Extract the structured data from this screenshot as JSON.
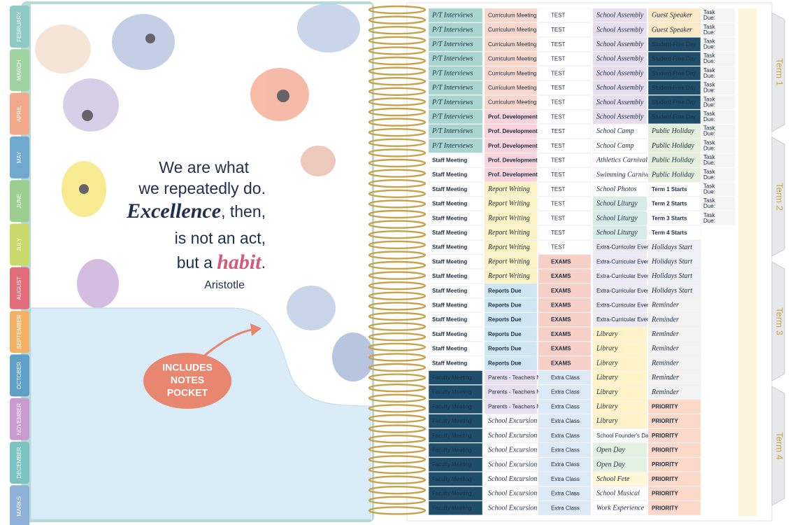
{
  "planner": {
    "month_tabs": [
      {
        "label": "FEBRUARY",
        "color": "#8fc9c4"
      },
      {
        "label": "MARCH",
        "color": "#9fd3a2"
      },
      {
        "label": "APRIL",
        "color": "#f2a88a"
      },
      {
        "label": "MAY",
        "color": "#6fa9cf"
      },
      {
        "label": "JUNE",
        "color": "#9ccf8f"
      },
      {
        "label": "JULY",
        "color": "#c9d96a"
      },
      {
        "label": "AUGUST",
        "color": "#e26b7a"
      },
      {
        "label": "SEPTEMBER",
        "color": "#f2b266"
      },
      {
        "label": "OCTOBER",
        "color": "#5fa0c8"
      },
      {
        "label": "NOVEMBER",
        "color": "#c89ad0"
      },
      {
        "label": "DECEMBER",
        "color": "#7bc3c0"
      },
      {
        "label": "MARKS",
        "color": "#8fb0d8"
      }
    ],
    "quote": {
      "line1": "We are what",
      "line2": "we repeatedly do.",
      "line3_emph": "Excellence",
      "line3_rest": ", then,",
      "line4": "is not an act,",
      "line5_start": "but a ",
      "line5_emph": "habit",
      "line5_end": ".",
      "author": "Aristotle"
    },
    "badge": [
      "INCLUDES",
      "NOTES",
      "POCKET"
    ],
    "term_tabs": [
      "Term 1",
      "Term 2",
      "Term 3",
      "Term 4"
    ],
    "columns": [
      {
        "groups": [
          {
            "bg": "#a8d5cf",
            "items": [
              "P/T Interviews",
              "P/T Interviews",
              "P/T Interviews",
              "P/T Interviews",
              "P/T Interviews",
              "P/T Interviews",
              "P/T Interviews",
              "P/T Interviews",
              "P/T Interviews",
              "P/T Interviews"
            ]
          },
          {
            "bg": "#ffffff",
            "items": [
              "Staff Meeting",
              "Staff Meeting",
              "Staff Meeting",
              "Staff Meeting",
              "Staff Meeting",
              "Staff Meeting",
              "Staff Meeting",
              "Staff Meeting",
              "Staff Meeting",
              "Staff Meeting",
              "Staff Meeting",
              "Staff Meeting",
              "Staff Meeting",
              "Staff Meeting",
              "Staff Meeting"
            ]
          },
          {
            "bg": "#1f4e6b",
            "items": [
              "Faculty Meeting",
              "Faculty Meeting",
              "Faculty Meeting",
              "Faculty Meeting",
              "Faculty Meeting",
              "Faculty Meeting",
              "Faculty Meeting",
              "Faculty Meeting",
              "Faculty Meeting",
              "Faculty Meeting"
            ]
          }
        ]
      },
      {
        "groups": [
          {
            "bg": "#f7d7cc",
            "items": [
              "Curriculum Meeting",
              "Curriculum Meeting",
              "Curriculum Meeting",
              "Curriculum Meeting",
              "Curriculum Meeting",
              "Curriculum Meeting",
              "Curriculum Meeting"
            ]
          },
          {
            "bg": "#f9d3dc",
            "items": [
              "Prof. Development",
              "Prof. Development",
              "Prof. Development",
              "Prof. Development",
              "Prof. Development"
            ]
          },
          {
            "bg": "#fbf3c4",
            "items": [
              "Report Writing",
              "Report Writing",
              "Report Writing",
              "Report Writing",
              "Report Writing",
              "Report Writing",
              "Report Writing"
            ]
          },
          {
            "bg": "#cfe6f2",
            "items": [
              "Reports Due",
              "Reports Due",
              "Reports Due",
              "Reports Due",
              "Reports Due",
              "Reports Due"
            ]
          },
          {
            "bg": "#e8e0f0",
            "items": [
              "Parents - Teachers Meeting",
              "Parents - Teachers Meeting",
              "Parents - Teachers Meeting"
            ]
          },
          {
            "bg": "#ffffff",
            "items": [
              "School Excursion",
              "School Excursion",
              "School Excursion",
              "School Excursion",
              "School Excursion",
              "School Excursion",
              "School Excursion"
            ]
          }
        ]
      },
      {
        "groups": [
          {
            "bg": "#ffffff",
            "items": [
              "TEST",
              "TEST",
              "TEST",
              "TEST",
              "TEST",
              "TEST",
              "TEST",
              "TEST",
              "TEST",
              "TEST",
              "TEST",
              "TEST",
              "TEST",
              "TEST",
              "TEST",
              "TEST",
              "TEST"
            ]
          },
          {
            "bg": "#f6cfc6",
            "items": [
              "EXAMS",
              "EXAMS",
              "EXAMS",
              "EXAMS",
              "EXAMS",
              "EXAMS",
              "EXAMS",
              "EXAMS"
            ]
          },
          {
            "bg": "#dde9f5",
            "items": [
              "Extra Class",
              "Extra Class",
              "Extra Class",
              "Extra Class",
              "Extra Class",
              "Extra Class",
              "Extra Class",
              "Extra Class",
              "Extra Class",
              "Extra Class"
            ]
          }
        ]
      },
      {
        "groups": [
          {
            "bg": "#e6ddef",
            "items": [
              "School Assembly",
              "School Assembly",
              "School Assembly",
              "School Assembly",
              "School Assembly",
              "School Assembly",
              "School Assembly",
              "School Assembly"
            ]
          },
          {
            "bg": "#ffffff",
            "items": [
              "School Camp",
              "School Camp"
            ]
          },
          {
            "bg": "#ffffff",
            "items": [
              "Athletics Carnival",
              "Swimming Carnival",
              "School Photos"
            ]
          },
          {
            "bg": "#d5ece7",
            "items": [
              "School Liturgy",
              "School Liturgy",
              "School Liturgy"
            ]
          },
          {
            "bg": "#eceaf5",
            "items": [
              "Extra-Curricular Event",
              "Extra-Curricular Event",
              "Extra-Curricular Event",
              "Extra-Curricular Event",
              "Extra-Curricular Event",
              "Extra-Curricular Event"
            ]
          },
          {
            "bg": "#fff3c7",
            "items": [
              "Library",
              "Library",
              "Library",
              "Library",
              "Library",
              "Library",
              "Library"
            ]
          },
          {
            "bg": "#ffffff",
            "items": [
              "School Founder's Day"
            ]
          },
          {
            "bg": "#e3f1e3",
            "items": [
              "Open Day",
              "Open Day"
            ]
          },
          {
            "bg": "#fff7d6",
            "items": [
              "School Fete"
            ]
          },
          {
            "bg": "#ffffff",
            "items": [
              "School Musical",
              "Work Experience"
            ]
          }
        ]
      },
      {
        "groups": [
          {
            "bg": "#fbe9c6",
            "items": [
              "Guest Speaker",
              "Guest Speaker"
            ]
          },
          {
            "bg": "#1f4e6b",
            "items": [
              "Student-Free Day",
              "Student-Free Day",
              "Student-Free Day",
              "Student-Free Day",
              "Student-Free Day",
              "Student-Free Day"
            ]
          },
          {
            "bg": "#e4f0dc",
            "items": [
              "Public Holiday",
              "Public Holiday",
              "Public Holiday",
              "Public Holiday"
            ]
          },
          {
            "bg": "#ffffff",
            "items": [
              "Term 1 Starts",
              "Term 2 Starts",
              "Term 3 Starts",
              "Term 4 Starts"
            ]
          },
          {
            "bg": "#eef0f5",
            "items": [
              "Holidays Start",
              "Holidays Start",
              "Holidays Start",
              "Holidays Start"
            ]
          },
          {
            "bg": "#f3f3f3",
            "items": [
              "Reminder",
              "Reminder",
              "Reminder",
              "Reminder",
              "Reminder",
              "Reminder",
              "Reminder"
            ]
          },
          {
            "bg": "#fbd8c7",
            "items": [
              "PRIORITY",
              "PRIORITY",
              "PRIORITY",
              "PRIORITY",
              "PRIORITY",
              "PRIORITY",
              "PRIORITY",
              "PRIORITY"
            ]
          }
        ]
      }
    ],
    "task_stickers": [
      [
        "Task",
        "Due:"
      ],
      [
        "Task",
        "Due:"
      ],
      [
        "Task",
        "Due:"
      ],
      [
        "Task",
        "Due:"
      ],
      [
        "Task",
        "Due:"
      ],
      [
        "Task",
        "Due:"
      ],
      [
        "Task",
        "Due:"
      ],
      [
        "Task",
        "Due:"
      ],
      [
        "Task",
        "Due:"
      ],
      [
        "Task",
        "Due:"
      ],
      [
        "Task",
        "Due:"
      ],
      [
        "Task",
        "Due:"
      ],
      [
        "Task",
        "Due:"
      ],
      [
        "Task",
        "Due:"
      ],
      [
        "Task",
        "Due:"
      ]
    ]
  }
}
